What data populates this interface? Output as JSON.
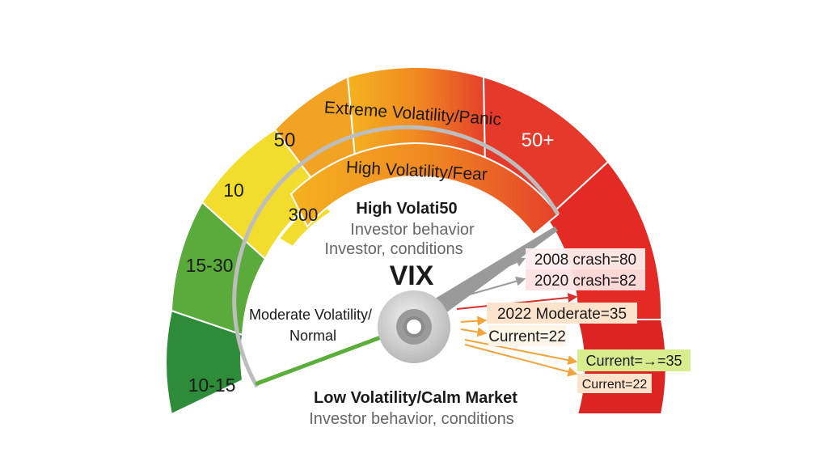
{
  "outer_ring": {
    "extreme_label": "Extreme Volatility/Panic",
    "labels": [
      "10-15",
      "15-30",
      "10",
      "50",
      "50+"
    ]
  },
  "inner_ring": {
    "high_label": "High Volatility/Fear",
    "label_300": "300"
  },
  "center": {
    "high_title": "High Volati50",
    "sub1": "Investor behavior",
    "sub2": "Investor, conditions",
    "vix": "VIX",
    "moderate_line1": "Moderate Volatility/",
    "moderate_line2": "Normal",
    "low_title": "Low Volatility/Calm Market",
    "low_sub": "Investor behavior, conditions"
  },
  "callouts": [
    "2008 crash=80",
    "2020 crash=82",
    "2022 Moderate=35",
    "Current=22",
    "Current=→=35",
    "Current=22"
  ],
  "colors": {
    "dark_green": "#2e8b3a",
    "green": "#5aaa3c",
    "yellow": "#f2dd2e",
    "orange": "#f39c1f",
    "red": "#e32a24",
    "needle": "#9a9a9a",
    "green_needle": "#5cae3a"
  }
}
